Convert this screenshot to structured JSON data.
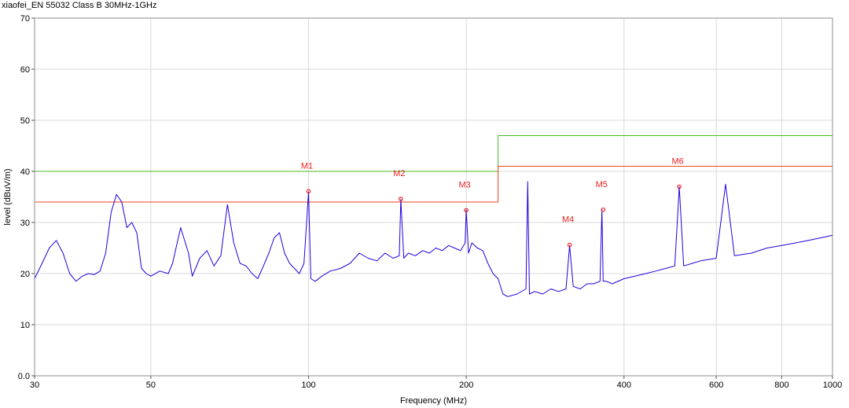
{
  "chart_data": {
    "type": "line",
    "title": "xiaofei_EN 55032 Class B 30MHz-1GHz",
    "xlabel": "Frequency (MHz)",
    "ylabel": "level (dBuV/m)",
    "xscale": "log",
    "xlim": [
      30,
      1000
    ],
    "ylim": [
      0,
      70
    ],
    "grid": true,
    "x_ticks": [
      {
        "value": 30,
        "label": "30"
      },
      {
        "value": 50,
        "label": "50"
      },
      {
        "value": 100,
        "label": "100"
      },
      {
        "value": 200,
        "label": "200"
      },
      {
        "value": 400,
        "label": "400"
      },
      {
        "value": 600,
        "label": "600"
      },
      {
        "value": 800,
        "label": "800"
      },
      {
        "value": 1000,
        "label": "1000"
      }
    ],
    "y_ticks": [
      {
        "value": 0,
        "label": "0.0"
      },
      {
        "value": 10,
        "label": "10"
      },
      {
        "value": 20,
        "label": "20"
      },
      {
        "value": 30,
        "label": "30"
      },
      {
        "value": 40,
        "label": "40"
      },
      {
        "value": 50,
        "label": "50"
      },
      {
        "value": 60,
        "label": "60"
      },
      {
        "value": 70,
        "label": "70"
      }
    ],
    "colors": {
      "trace": "#2200dd",
      "limit_qp": "#44bb22",
      "limit_margin": "#ee4422",
      "marker": "#ee2222",
      "grid": "#d9d9d9"
    },
    "series": [
      {
        "key": "limit_qp",
        "x": [
          30,
          230,
          230,
          1000
        ],
        "y": [
          40,
          40,
          47,
          47
        ]
      },
      {
        "key": "limit_margin",
        "x": [
          30,
          230,
          230,
          1000
        ],
        "y": [
          34,
          34,
          41,
          41
        ]
      },
      {
        "key": "trace",
        "x": [
          30,
          31,
          32,
          33,
          34,
          35,
          36,
          37,
          38,
          39,
          40,
          41,
          42,
          43,
          44,
          45,
          46,
          47,
          48,
          49,
          50,
          52,
          54,
          55,
          57,
          59,
          60,
          62,
          64,
          66,
          68,
          70,
          72,
          74,
          76,
          78,
          80,
          82,
          84,
          86,
          88,
          90,
          92,
          94,
          96,
          98,
          100,
          101,
          103,
          106,
          110,
          115,
          120,
          125,
          130,
          135,
          140,
          145,
          149,
          150,
          152,
          155,
          160,
          165,
          170,
          175,
          180,
          185,
          190,
          195,
          199,
          200,
          202,
          205,
          210,
          215,
          220,
          225,
          230,
          235,
          240,
          250,
          260,
          262,
          264,
          270,
          280,
          290,
          300,
          310,
          315,
          320,
          330,
          340,
          350,
          360,
          363,
          365,
          370,
          380,
          400,
          420,
          440,
          460,
          480,
          500,
          510,
          520,
          540,
          560,
          600,
          625,
          650,
          700,
          750,
          800,
          850,
          900,
          950,
          1000
        ],
        "y": [
          19,
          22,
          25,
          26.5,
          24,
          20,
          18.5,
          19.5,
          20,
          19.8,
          20.5,
          24,
          32,
          35.5,
          34,
          29,
          30,
          28,
          21,
          20,
          19.5,
          20.5,
          20,
          22,
          29,
          24,
          19.5,
          23,
          24.5,
          21.5,
          23.5,
          33.5,
          26,
          22,
          21.5,
          20,
          19,
          21.5,
          24,
          27,
          28,
          24,
          22,
          21,
          20,
          22,
          36,
          19,
          18.5,
          19.5,
          20.5,
          21,
          22,
          24,
          23,
          22.5,
          24,
          23,
          23.5,
          34.5,
          23,
          24,
          23.5,
          24.5,
          24,
          25,
          24.5,
          25.5,
          25,
          24.5,
          26,
          32.5,
          24,
          26,
          25,
          24.5,
          22,
          20,
          19,
          16,
          15.5,
          16,
          17,
          38,
          16,
          16.5,
          16,
          17,
          16.5,
          17,
          25.5,
          17.5,
          17,
          18,
          18,
          18.5,
          32.5,
          18.5,
          18.5,
          18,
          19,
          19.5,
          20,
          20.5,
          21,
          21.5,
          37,
          21.5,
          22,
          22.5,
          23,
          37.5,
          23.5,
          24,
          25,
          25.5,
          26,
          26.5,
          27,
          27.5
        ]
      }
    ],
    "markers": [
      {
        "label": "M1",
        "x": 100,
        "y": 36.1
      },
      {
        "label": "M2",
        "x": 150,
        "y": 34.6
      },
      {
        "label": "M3",
        "x": 200,
        "y": 32.4
      },
      {
        "label": "M4",
        "x": 315,
        "y": 25.6
      },
      {
        "label": "M5",
        "x": 365,
        "y": 32.5
      },
      {
        "label": "M6",
        "x": 510,
        "y": 37.0
      }
    ]
  }
}
